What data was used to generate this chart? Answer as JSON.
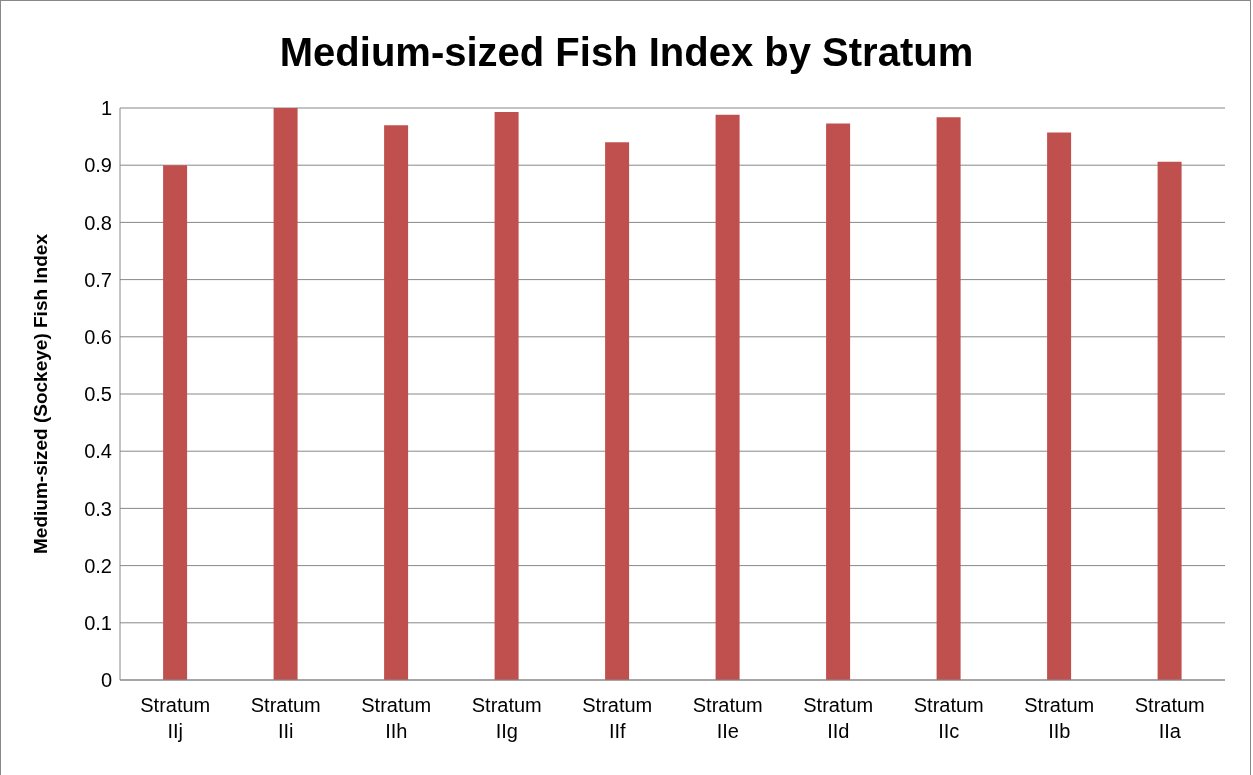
{
  "chart_data": {
    "type": "bar",
    "title": "Medium-sized Fish Index by Stratum",
    "ylabel": "Medium-sized (Sockeye) Fish Index",
    "categories": [
      "Stratum IIj",
      "Stratum IIi",
      "Stratum IIh",
      "Stratum IIg",
      "Stratum IIf",
      "Stratum IIe",
      "Stratum IId",
      "Stratum IIc",
      "Stratum IIb",
      "Stratum IIa"
    ],
    "values": [
      0.9,
      1.0,
      0.97,
      0.993,
      0.94,
      0.988,
      0.973,
      0.984,
      0.957,
      0.906
    ],
    "color": "#c0504d",
    "ylim": [
      0,
      1
    ],
    "yticks": [
      0,
      0.1,
      0.2,
      0.3,
      0.4,
      0.5,
      0.6,
      0.7,
      0.8,
      0.9,
      1
    ],
    "grid": "y"
  }
}
